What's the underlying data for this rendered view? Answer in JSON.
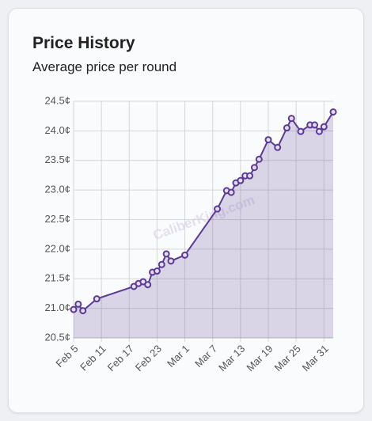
{
  "chart_data": {
    "type": "line",
    "title": "Price History",
    "subtitle": "Average price per round",
    "watermark": "CaliberKing.com",
    "x": [
      "Feb 5",
      "Feb 6",
      "Feb 7",
      "Feb 10",
      "Feb 18",
      "Feb 19",
      "Feb 20",
      "Feb 21",
      "Feb 22",
      "Feb 23",
      "Feb 24",
      "Feb 25",
      "Feb 26",
      "Mar 1",
      "Mar 8",
      "Mar 10",
      "Mar 11",
      "Mar 12",
      "Mar 13",
      "Mar 14",
      "Mar 15",
      "Mar 16",
      "Mar 17",
      "Mar 19",
      "Mar 21",
      "Mar 23",
      "Mar 24",
      "Mar 26",
      "Mar 28",
      "Mar 29",
      "Mar 30",
      "Mar 31",
      "Apr 2"
    ],
    "series": [
      {
        "name": "Average price",
        "color": "#5b3a96",
        "values": [
          20.98,
          21.07,
          20.96,
          21.16,
          21.37,
          21.42,
          21.45,
          21.4,
          21.61,
          21.63,
          21.74,
          21.92,
          21.8,
          21.9,
          22.68,
          22.99,
          22.96,
          23.12,
          23.16,
          23.24,
          23.24,
          23.38,
          23.52,
          23.85,
          23.72,
          24.05,
          24.21,
          23.99,
          24.1,
          24.1,
          23.99,
          24.07,
          24.32
        ]
      }
    ],
    "area": true,
    "xlim": [
      "Feb 5",
      "Apr 2"
    ],
    "xticks": [
      "Feb 5",
      "Feb 11",
      "Feb 17",
      "Feb 23",
      "Mar 1",
      "Mar 7",
      "Mar 13",
      "Mar 19",
      "Mar 25",
      "Mar 31"
    ],
    "ylim": [
      20.5,
      24.5
    ],
    "yticks": [
      {
        "value": 20.5,
        "label": "20.5¢"
      },
      {
        "value": 21,
        "label": "21.0¢"
      },
      {
        "value": 21.5,
        "label": "21.5¢"
      },
      {
        "value": 22,
        "label": "22.0¢"
      },
      {
        "value": 22.5,
        "label": "22.5¢"
      },
      {
        "value": 23,
        "label": "23.0¢"
      },
      {
        "value": 23.5,
        "label": "23.5¢"
      },
      {
        "value": 24,
        "label": "24.0¢"
      },
      {
        "value": 24.5,
        "label": "24.5¢"
      }
    ],
    "grid": true
  }
}
